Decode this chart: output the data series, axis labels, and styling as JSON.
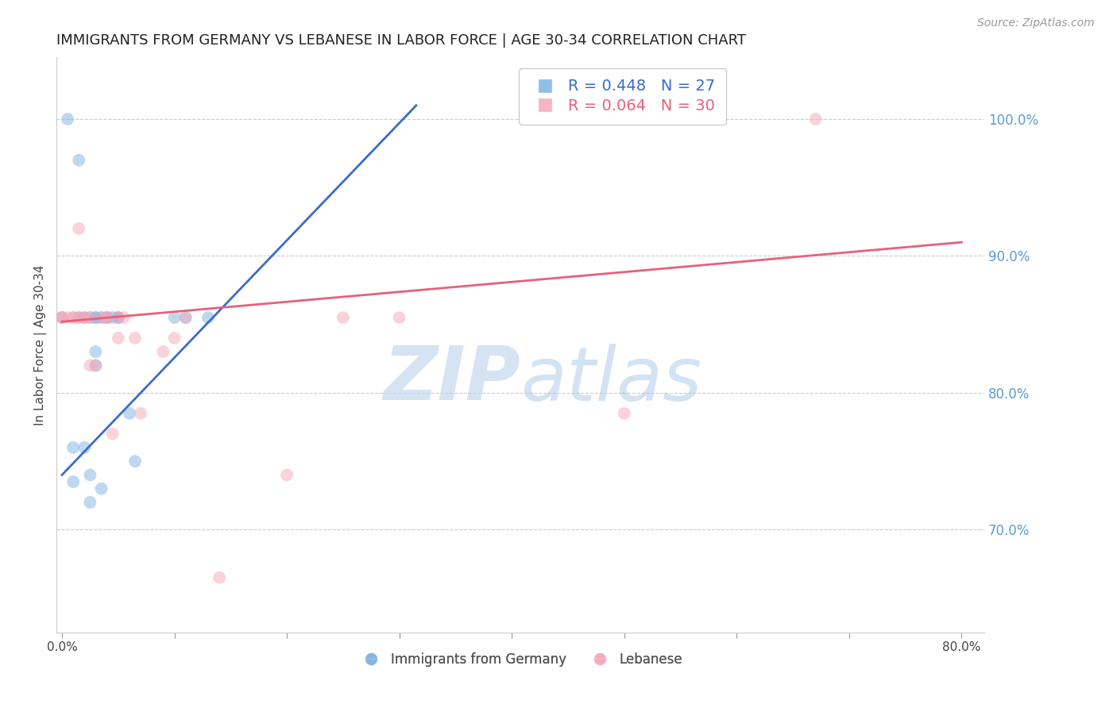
{
  "title": "IMMIGRANTS FROM GERMANY VS LEBANESE IN LABOR FORCE | AGE 30-34 CORRELATION CHART",
  "source": "Source: ZipAtlas.com",
  "ylabel": "In Labor Force | Age 30-34",
  "legend_blue": "R = 0.448   N = 27",
  "legend_pink": "R = 0.064   N = 30",
  "legend_label_blue": "Immigrants from Germany",
  "legend_label_pink": "Lebanese",
  "blue_scatter_x": [
    0.0,
    0.005,
    0.01,
    0.01,
    0.015,
    0.015,
    0.02,
    0.02,
    0.025,
    0.025,
    0.025,
    0.03,
    0.03,
    0.03,
    0.03,
    0.035,
    0.035,
    0.04,
    0.04,
    0.045,
    0.05,
    0.05,
    0.06,
    0.065,
    0.1,
    0.11,
    0.13
  ],
  "blue_scatter_y": [
    0.855,
    1.0,
    0.735,
    0.76,
    0.855,
    0.97,
    0.76,
    0.855,
    0.72,
    0.74,
    0.855,
    0.82,
    0.83,
    0.855,
    0.855,
    0.855,
    0.73,
    0.855,
    0.855,
    0.855,
    0.855,
    0.855,
    0.785,
    0.75,
    0.855,
    0.855,
    0.855
  ],
  "pink_scatter_x": [
    0.0,
    0.0,
    0.005,
    0.01,
    0.01,
    0.015,
    0.015,
    0.02,
    0.02,
    0.025,
    0.025,
    0.03,
    0.035,
    0.04,
    0.04,
    0.045,
    0.05,
    0.05,
    0.055,
    0.065,
    0.07,
    0.09,
    0.1,
    0.11,
    0.14,
    0.2,
    0.25,
    0.3,
    0.5,
    0.67
  ],
  "pink_scatter_y": [
    0.855,
    0.855,
    0.855,
    0.855,
    0.855,
    0.855,
    0.92,
    0.855,
    0.855,
    0.855,
    0.82,
    0.82,
    0.855,
    0.855,
    0.855,
    0.77,
    0.84,
    0.855,
    0.855,
    0.84,
    0.785,
    0.83,
    0.84,
    0.855,
    0.665,
    0.74,
    0.855,
    0.855,
    0.785,
    1.0
  ],
  "blue_line_x": [
    0.0,
    0.315
  ],
  "blue_line_y": [
    0.74,
    1.01
  ],
  "pink_line_x": [
    0.0,
    0.8
  ],
  "pink_line_y": [
    0.852,
    0.91
  ],
  "xlim": [
    -0.005,
    0.82
  ],
  "ylim": [
    0.625,
    1.045
  ],
  "yticks": [
    0.7,
    0.8,
    0.9,
    1.0
  ],
  "ytick_labels": [
    "70.0%",
    "80.0%",
    "90.0%",
    "100.0%"
  ],
  "xticks": [
    0.0,
    0.1,
    0.2,
    0.3,
    0.4,
    0.5,
    0.6,
    0.7,
    0.8
  ],
  "xtick_labels": [
    "0.0%",
    "",
    "",
    "",
    "",
    "",
    "",
    "",
    "80.0%"
  ],
  "blue_color": "#7EB3E0",
  "pink_color": "#F4A8B8",
  "blue_line_color": "#3A6CC8",
  "pink_line_color": "#E8607A",
  "watermark_zip": "ZIP",
  "watermark_atlas": "atlas",
  "grid_color": "#CCCCCC",
  "right_axis_color": "#5B9BD5",
  "title_fontsize": 13,
  "source_fontsize": 10,
  "scatter_size": 130,
  "scatter_alpha": 0.5
}
